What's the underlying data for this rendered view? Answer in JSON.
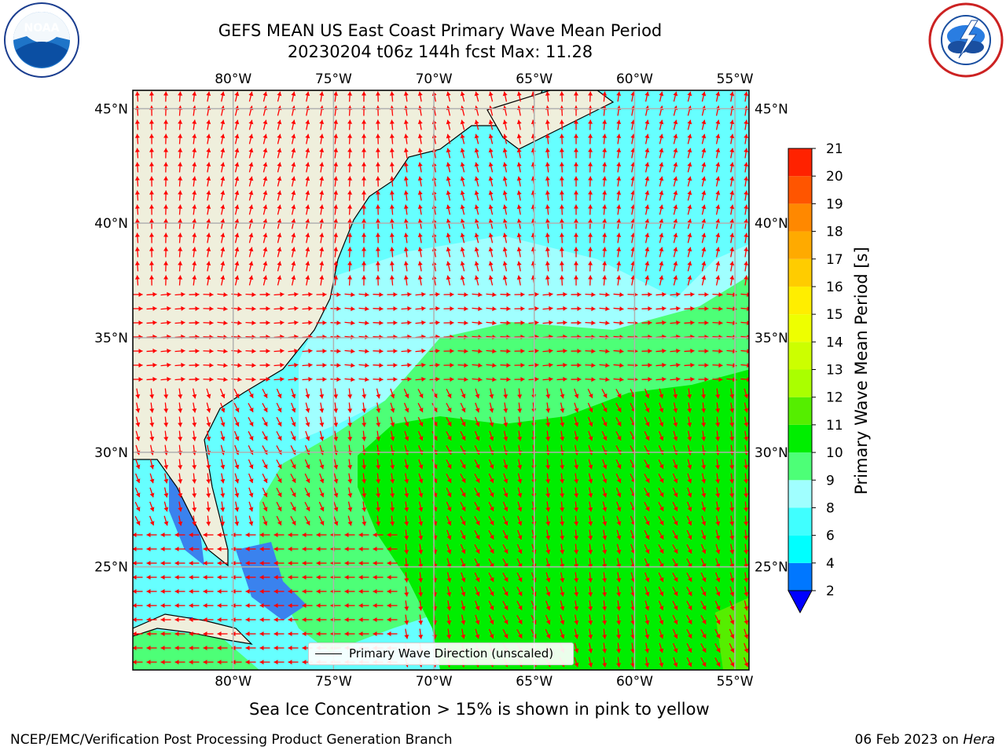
{
  "title_line1": "GEFS MEAN US East Coast Primary Wave Mean Period",
  "title_line2": "20230204 t06z 144h fcst   Max: 11.28",
  "legend_text": "Primary Wave Direction (unscaled)",
  "sea_ice_note": "Sea Ice Concentration > 15% is shown in pink to yellow",
  "footer_left": "NCEP/EMC/Verification Post Processing Product Generation Branch",
  "footer_right_date": "06 Feb 2023 on ",
  "footer_right_host": "Hera",
  "logos": {
    "noaa": {
      "icon": "noaa-logo",
      "text": "NOAA"
    },
    "nws": {
      "icon": "nws-logo"
    }
  },
  "map": {
    "lon_range": [
      -85,
      -54.3
    ],
    "lat_range": [
      20.5,
      45.8
    ],
    "lon_ticks": [
      {
        "value": -80,
        "label": "80°W"
      },
      {
        "value": -75,
        "label": "75°W"
      },
      {
        "value": -70,
        "label": "70°W"
      },
      {
        "value": -65,
        "label": "65°W"
      },
      {
        "value": -60,
        "label": "60°W"
      },
      {
        "value": -55,
        "label": "55°W"
      }
    ],
    "lat_ticks": [
      {
        "value": 45,
        "label": "45°N"
      },
      {
        "value": 40,
        "label": "40°N"
      },
      {
        "value": 35,
        "label": "35°N"
      },
      {
        "value": 30,
        "label": "30°N"
      },
      {
        "value": 25,
        "label": "25°N"
      }
    ],
    "colors": {
      "land": "#efefdc",
      "gridline": "#b0b0b0",
      "arrow": "#ff0000",
      "coast": "#000000",
      "ocean_default": "#66ffff"
    }
  },
  "colorbar": {
    "label": "Primary Wave Mean Period [s]",
    "levels": [
      2,
      4,
      6,
      8,
      9,
      10,
      11,
      12,
      13,
      14,
      15,
      16,
      17,
      18,
      19,
      20,
      21
    ],
    "colors": [
      "#0077ff",
      "#00ffff",
      "#40ffff",
      "#a0ffff",
      "#4dff77",
      "#00ee00",
      "#55ee00",
      "#aaff00",
      "#ccff00",
      "#eeff00",
      "#ffee00",
      "#ffcc00",
      "#ffaa00",
      "#ff8800",
      "#ff5500",
      "#ff2200",
      "#ff0000"
    ],
    "under_color": "#0000ff"
  }
}
